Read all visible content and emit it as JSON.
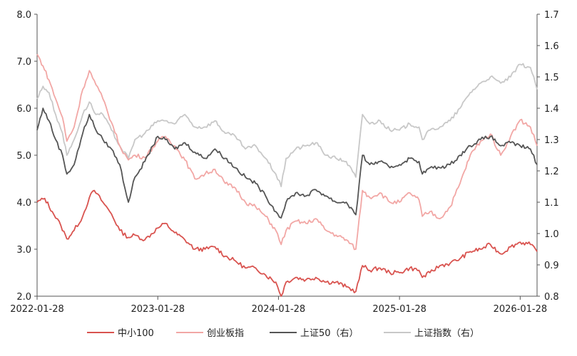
{
  "chart_data": {
    "type": "line",
    "x_ticks": [
      "2022-01-28",
      "2023-01-28",
      "2024-01-28",
      "2025-01-28",
      "2026-01-28"
    ],
    "y_left": {
      "ylim": [
        2.0,
        8.0
      ],
      "ticks": [
        "2.0",
        "3.0",
        "4.0",
        "5.0",
        "6.0",
        "7.0",
        "8.0"
      ]
    },
    "y_right": {
      "ylim": [
        0.8,
        1.7
      ],
      "ticks": [
        "0.8",
        "0.9",
        "1.0",
        "1.1",
        "1.2",
        "1.3",
        "1.4",
        "1.5",
        "1.6",
        "1.7"
      ]
    },
    "series": [
      {
        "name": "中小100",
        "axis": "left",
        "color": "#d9534f",
        "points": [
          [
            "2022-01-28",
            4.0
          ],
          [
            "2022-02-20",
            4.08
          ],
          [
            "2022-03-15",
            3.8
          ],
          [
            "2022-04-10",
            3.5
          ],
          [
            "2022-04-28",
            3.22
          ],
          [
            "2022-05-20",
            3.4
          ],
          [
            "2022-06-15",
            3.7
          ],
          [
            "2022-07-05",
            4.1
          ],
          [
            "2022-07-20",
            4.25
          ],
          [
            "2022-08-15",
            4.0
          ],
          [
            "2022-09-10",
            3.75
          ],
          [
            "2022-10-05",
            3.4
          ],
          [
            "2022-10-31",
            3.25
          ],
          [
            "2022-11-20",
            3.3
          ],
          [
            "2022-12-20",
            3.2
          ],
          [
            "2023-01-28",
            3.45
          ],
          [
            "2023-02-20",
            3.55
          ],
          [
            "2023-03-20",
            3.35
          ],
          [
            "2023-04-20",
            3.2
          ],
          [
            "2023-05-20",
            3.0
          ],
          [
            "2023-06-20",
            3.0
          ],
          [
            "2023-07-20",
            3.05
          ],
          [
            "2023-08-20",
            2.85
          ],
          [
            "2023-09-20",
            2.75
          ],
          [
            "2023-10-20",
            2.6
          ],
          [
            "2023-11-20",
            2.6
          ],
          [
            "2023-12-20",
            2.45
          ],
          [
            "2024-01-20",
            2.3
          ],
          [
            "2024-02-05",
            2.0
          ],
          [
            "2024-02-20",
            2.3
          ],
          [
            "2024-03-20",
            2.4
          ],
          [
            "2024-04-20",
            2.35
          ],
          [
            "2024-05-20",
            2.4
          ],
          [
            "2024-06-20",
            2.3
          ],
          [
            "2024-07-20",
            2.3
          ],
          [
            "2024-08-20",
            2.2
          ],
          [
            "2024-09-18",
            2.1
          ],
          [
            "2024-10-08",
            2.65
          ],
          [
            "2024-10-30",
            2.55
          ],
          [
            "2024-11-30",
            2.6
          ],
          [
            "2024-12-30",
            2.5
          ],
          [
            "2025-01-28",
            2.5
          ],
          [
            "2025-02-28",
            2.6
          ],
          [
            "2025-03-28",
            2.55
          ],
          [
            "2025-04-07",
            2.4
          ],
          [
            "2025-04-30",
            2.5
          ],
          [
            "2025-05-30",
            2.65
          ],
          [
            "2025-06-30",
            2.7
          ],
          [
            "2025-07-30",
            2.8
          ],
          [
            "2025-08-30",
            2.95
          ],
          [
            "2025-09-30",
            3.0
          ],
          [
            "2025-10-30",
            3.1
          ],
          [
            "2025-11-30",
            2.9
          ],
          [
            "2025-12-30",
            3.05
          ],
          [
            "2026-01-28",
            3.15
          ],
          [
            "2026-02-28",
            3.1
          ],
          [
            "2026-03-20",
            2.95
          ]
        ]
      },
      {
        "name": "创业板指",
        "axis": "left",
        "color": "#f2a7a5",
        "points": [
          [
            "2022-01-28",
            7.15
          ],
          [
            "2022-02-15",
            6.9
          ],
          [
            "2022-03-05",
            6.6
          ],
          [
            "2022-03-25",
            6.2
          ],
          [
            "2022-04-15",
            5.8
          ],
          [
            "2022-04-28",
            5.3
          ],
          [
            "2022-05-20",
            5.6
          ],
          [
            "2022-06-15",
            6.4
          ],
          [
            "2022-07-05",
            6.8
          ],
          [
            "2022-07-25",
            6.5
          ],
          [
            "2022-08-15",
            6.2
          ],
          [
            "2022-09-10",
            5.7
          ],
          [
            "2022-10-05",
            5.2
          ],
          [
            "2022-10-31",
            4.9
          ],
          [
            "2022-11-20",
            5.0
          ],
          [
            "2022-12-20",
            4.95
          ],
          [
            "2023-01-28",
            5.3
          ],
          [
            "2023-02-20",
            5.4
          ],
          [
            "2023-03-20",
            5.2
          ],
          [
            "2023-04-20",
            4.9
          ],
          [
            "2023-05-20",
            4.5
          ],
          [
            "2023-06-20",
            4.6
          ],
          [
            "2023-07-20",
            4.7
          ],
          [
            "2023-08-20",
            4.4
          ],
          [
            "2023-09-20",
            4.3
          ],
          [
            "2023-10-20",
            4.0
          ],
          [
            "2023-11-20",
            3.9
          ],
          [
            "2023-12-20",
            3.7
          ],
          [
            "2024-01-20",
            3.4
          ],
          [
            "2024-02-05",
            3.1
          ],
          [
            "2024-02-20",
            3.4
          ],
          [
            "2024-03-20",
            3.6
          ],
          [
            "2024-04-20",
            3.55
          ],
          [
            "2024-05-20",
            3.65
          ],
          [
            "2024-06-20",
            3.4
          ],
          [
            "2024-07-20",
            3.3
          ],
          [
            "2024-08-20",
            3.2
          ],
          [
            "2024-09-18",
            3.0
          ],
          [
            "2024-10-08",
            4.25
          ],
          [
            "2024-10-30",
            4.1
          ],
          [
            "2024-11-30",
            4.2
          ],
          [
            "2024-12-30",
            4.0
          ],
          [
            "2025-01-28",
            4.0
          ],
          [
            "2025-02-28",
            4.2
          ],
          [
            "2025-03-28",
            4.05
          ],
          [
            "2025-04-07",
            3.7
          ],
          [
            "2025-04-30",
            3.8
          ],
          [
            "2025-05-30",
            3.65
          ],
          [
            "2025-06-30",
            3.9
          ],
          [
            "2025-07-30",
            4.4
          ],
          [
            "2025-08-30",
            5.0
          ],
          [
            "2025-09-30",
            5.3
          ],
          [
            "2025-10-30",
            5.45
          ],
          [
            "2025-11-30",
            5.0
          ],
          [
            "2025-12-30",
            5.4
          ],
          [
            "2026-01-28",
            5.75
          ],
          [
            "2026-02-28",
            5.6
          ],
          [
            "2026-03-20",
            5.2
          ]
        ]
      },
      {
        "name": "上证50（右）",
        "axis": "right",
        "color": "#555555",
        "points": [
          [
            "2022-01-28",
            1.33
          ],
          [
            "2022-02-15",
            1.4
          ],
          [
            "2022-03-05",
            1.36
          ],
          [
            "2022-03-25",
            1.3
          ],
          [
            "2022-04-15",
            1.25
          ],
          [
            "2022-04-28",
            1.19
          ],
          [
            "2022-05-20",
            1.22
          ],
          [
            "2022-06-15",
            1.32
          ],
          [
            "2022-07-05",
            1.38
          ],
          [
            "2022-07-25",
            1.33
          ],
          [
            "2022-08-15",
            1.3
          ],
          [
            "2022-09-10",
            1.27
          ],
          [
            "2022-10-05",
            1.22
          ],
          [
            "2022-10-31",
            1.1
          ],
          [
            "2022-11-20",
            1.18
          ],
          [
            "2022-12-20",
            1.23
          ],
          [
            "2023-01-28",
            1.31
          ],
          [
            "2023-02-20",
            1.3
          ],
          [
            "2023-03-20",
            1.27
          ],
          [
            "2023-04-20",
            1.29
          ],
          [
            "2023-05-20",
            1.26
          ],
          [
            "2023-06-20",
            1.24
          ],
          [
            "2023-07-20",
            1.27
          ],
          [
            "2023-08-20",
            1.24
          ],
          [
            "2023-09-20",
            1.21
          ],
          [
            "2023-10-20",
            1.18
          ],
          [
            "2023-11-20",
            1.16
          ],
          [
            "2023-12-20",
            1.12
          ],
          [
            "2024-01-20",
            1.07
          ],
          [
            "2024-02-05",
            1.05
          ],
          [
            "2024-02-20",
            1.1
          ],
          [
            "2024-03-20",
            1.13
          ],
          [
            "2024-04-20",
            1.12
          ],
          [
            "2024-05-20",
            1.14
          ],
          [
            "2024-06-20",
            1.12
          ],
          [
            "2024-07-20",
            1.1
          ],
          [
            "2024-08-20",
            1.1
          ],
          [
            "2024-09-18",
            1.06
          ],
          [
            "2024-10-08",
            1.25
          ],
          [
            "2024-10-30",
            1.22
          ],
          [
            "2024-11-30",
            1.23
          ],
          [
            "2024-12-30",
            1.21
          ],
          [
            "2025-01-28",
            1.22
          ],
          [
            "2025-02-28",
            1.24
          ],
          [
            "2025-03-28",
            1.23
          ],
          [
            "2025-04-07",
            1.19
          ],
          [
            "2025-04-30",
            1.21
          ],
          [
            "2025-05-30",
            1.21
          ],
          [
            "2025-06-30",
            1.22
          ],
          [
            "2025-07-30",
            1.25
          ],
          [
            "2025-08-30",
            1.28
          ],
          [
            "2025-09-30",
            1.3
          ],
          [
            "2025-10-30",
            1.31
          ],
          [
            "2025-11-30",
            1.28
          ],
          [
            "2025-12-30",
            1.29
          ],
          [
            "2026-01-28",
            1.28
          ],
          [
            "2026-02-28",
            1.27
          ],
          [
            "2026-03-20",
            1.22
          ]
        ]
      },
      {
        "name": "上证指数（右）",
        "axis": "right",
        "color": "#c8c8c8",
        "points": [
          [
            "2022-01-28",
            1.43
          ],
          [
            "2022-02-15",
            1.47
          ],
          [
            "2022-03-05",
            1.45
          ],
          [
            "2022-03-25",
            1.38
          ],
          [
            "2022-04-15",
            1.32
          ],
          [
            "2022-04-28",
            1.25
          ],
          [
            "2022-05-20",
            1.3
          ],
          [
            "2022-06-15",
            1.38
          ],
          [
            "2022-07-05",
            1.42
          ],
          [
            "2022-07-25",
            1.38
          ],
          [
            "2022-08-15",
            1.38
          ],
          [
            "2022-09-10",
            1.33
          ],
          [
            "2022-10-05",
            1.28
          ],
          [
            "2022-10-31",
            1.24
          ],
          [
            "2022-11-20",
            1.3
          ],
          [
            "2022-12-20",
            1.32
          ],
          [
            "2023-01-28",
            1.36
          ],
          [
            "2023-02-20",
            1.36
          ],
          [
            "2023-03-20",
            1.35
          ],
          [
            "2023-04-20",
            1.38
          ],
          [
            "2023-05-20",
            1.34
          ],
          [
            "2023-06-20",
            1.34
          ],
          [
            "2023-07-20",
            1.36
          ],
          [
            "2023-08-20",
            1.32
          ],
          [
            "2023-09-20",
            1.31
          ],
          [
            "2023-10-20",
            1.27
          ],
          [
            "2023-11-20",
            1.28
          ],
          [
            "2023-12-20",
            1.24
          ],
          [
            "2024-01-20",
            1.19
          ],
          [
            "2024-02-05",
            1.15
          ],
          [
            "2024-02-20",
            1.24
          ],
          [
            "2024-03-20",
            1.27
          ],
          [
            "2024-04-20",
            1.28
          ],
          [
            "2024-05-20",
            1.29
          ],
          [
            "2024-06-20",
            1.25
          ],
          [
            "2024-07-20",
            1.24
          ],
          [
            "2024-08-20",
            1.23
          ],
          [
            "2024-09-18",
            1.18
          ],
          [
            "2024-10-08",
            1.38
          ],
          [
            "2024-10-30",
            1.35
          ],
          [
            "2024-11-30",
            1.36
          ],
          [
            "2024-12-30",
            1.33
          ],
          [
            "2025-01-28",
            1.33
          ],
          [
            "2025-02-28",
            1.35
          ],
          [
            "2025-03-28",
            1.34
          ],
          [
            "2025-04-07",
            1.3
          ],
          [
            "2025-04-30",
            1.33
          ],
          [
            "2025-05-30",
            1.34
          ],
          [
            "2025-06-30",
            1.36
          ],
          [
            "2025-07-30",
            1.4
          ],
          [
            "2025-08-30",
            1.45
          ],
          [
            "2025-09-30",
            1.48
          ],
          [
            "2025-10-30",
            1.5
          ],
          [
            "2025-11-30",
            1.48
          ],
          [
            "2025-12-30",
            1.5
          ],
          [
            "2026-01-28",
            1.54
          ],
          [
            "2026-02-28",
            1.53
          ],
          [
            "2026-03-20",
            1.46
          ]
        ]
      }
    ]
  }
}
